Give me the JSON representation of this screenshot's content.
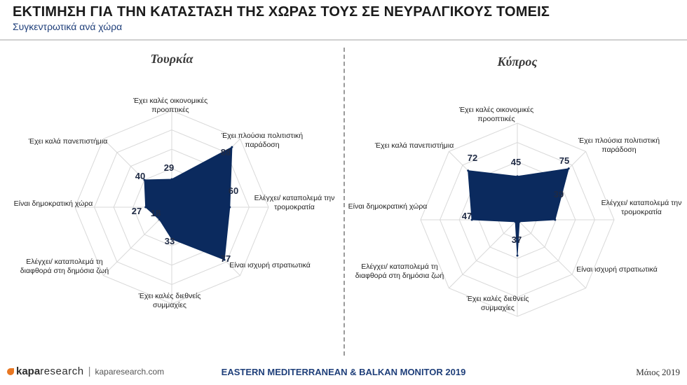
{
  "header": {
    "title": "ΕΚΤΙΜΗΣΗ ΓΙΑ ΤΗΝ ΚΑΤΑΣΤΑΣΗ ΤΗΣ ΧΩΡΑΣ ΤΟΥΣ ΣΕ ΝΕΥΡΑΛΓΙΚΟΥΣ ΤΟΜΕΙΣ",
    "subtitle": "Συγκεντρωτικά ανά χώρα"
  },
  "footer": {
    "brand_bold": "kapa",
    "brand_light": "research",
    "separator": "|",
    "site": "kaparesearch.com",
    "center_text": "EASTERN MEDITERRANEAN & BALKAN MONITOR 2019",
    "date": "Μάιος 2019"
  },
  "colors": {
    "fill": "#0b2a5e",
    "grid": "#d9d9d9",
    "accent": "#e87722"
  },
  "chart_data": [
    {
      "type": "radar",
      "title": "Τουρκία",
      "axis_max": 100,
      "grid_levels": 5,
      "categories": [
        [
          "Έχει καλές οικονομικές",
          "προοπτικές"
        ],
        [
          "Έχει πλούσια πολιτιστική",
          "παράδοση"
        ],
        [
          "Ελέγχει/ καταπολεμά την",
          "τρομοκρατία"
        ],
        [
          "Είναι ισχυρή στρατιωτικά"
        ],
        [
          "Έχει καλές διεθνείς",
          "συμμαχίες"
        ],
        [
          "Ελέγχει/ καταπολεμά  τη",
          "διαφθορά στη δημόσια ζωή"
        ],
        [
          "Είναι δημοκρατική χώρα"
        ],
        [
          "Έχει καλά πανεπιστήμια"
        ]
      ],
      "values": [
        29,
        88,
        60,
        77,
        33,
        18,
        27,
        40
      ],
      "value_labels": [
        "29",
        "88",
        "60",
        "77",
        "33",
        "18",
        "27",
        "40"
      ]
    },
    {
      "type": "radar",
      "title": "Κύπρος",
      "axis_max": 100,
      "grid_levels": 5,
      "categories": [
        [
          "Έχει καλές οικονομικές",
          "προοπτικές"
        ],
        [
          "Έχει πλούσια πολιτιστική",
          "παράδοση"
        ],
        [
          "Ελέγχει/ καταπολεμά την",
          "τρομοκρατία"
        ],
        [
          "Είναι ισχυρή στρατιωτικά"
        ],
        [
          "Έχει καλές διεθνείς",
          "συμμαχίες"
        ],
        [
          "Ελέγχει/ καταπολεμά  τη",
          "διαφθορά στη δημόσια ζωή"
        ],
        [
          "Είναι δημοκρατική χώρα"
        ],
        [
          "Έχει καλά πανεπιστήμια"
        ]
      ],
      "values": [
        45,
        75,
        39,
        3,
        37,
        3,
        47,
        72
      ],
      "value_labels": [
        "45",
        "75",
        "39",
        "",
        "37",
        "",
        "47",
        "72"
      ]
    }
  ]
}
